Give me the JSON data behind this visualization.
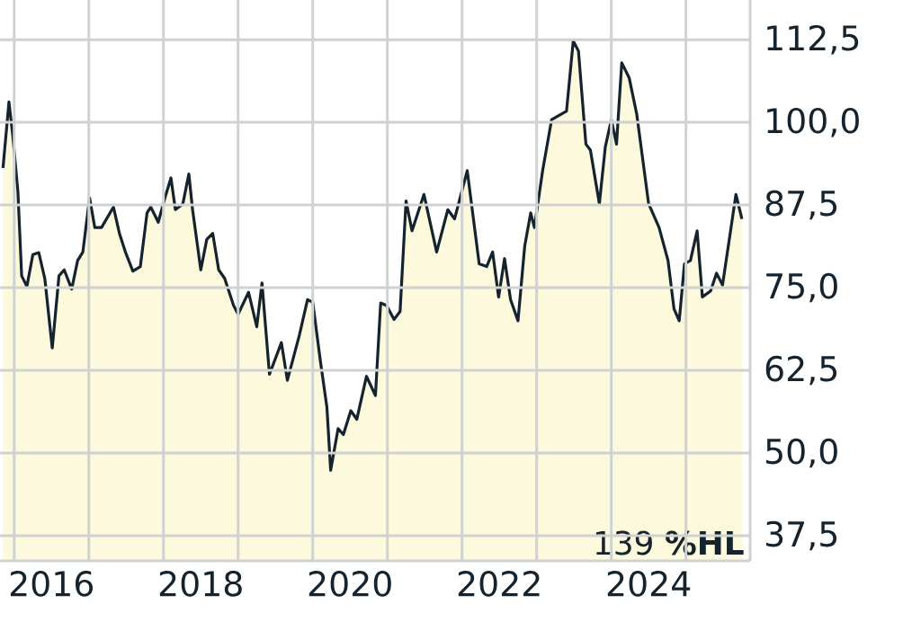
{
  "chart_data": {
    "type": "area",
    "xlim": [
      2015.81,
      2025.86
    ],
    "ylim": [
      33.7,
      118.5
    ],
    "xticks": [
      {
        "value": 2016,
        "label": null
      },
      {
        "value": 2016.5,
        "label": "2016"
      },
      {
        "value": 2017,
        "label": null
      },
      {
        "value": 2018,
        "label": null
      },
      {
        "value": 2018.5,
        "label": "2018"
      },
      {
        "value": 2019,
        "label": null
      },
      {
        "value": 2020,
        "label": null
      },
      {
        "value": 2020.5,
        "label": "2020"
      },
      {
        "value": 2021,
        "label": null
      },
      {
        "value": 2022,
        "label": null
      },
      {
        "value": 2022.5,
        "label": "2022"
      },
      {
        "value": 2023,
        "label": null
      },
      {
        "value": 2024,
        "label": null
      },
      {
        "value": 2024.5,
        "label": "2024"
      },
      {
        "value": 2025,
        "label": null
      }
    ],
    "yticks": [
      {
        "value": 37.5,
        "label": "37,5"
      },
      {
        "value": 50,
        "label": "50,0"
      },
      {
        "value": 62.5,
        "label": "62,5"
      },
      {
        "value": 75,
        "label": "75,0"
      },
      {
        "value": 87.5,
        "label": "87,5"
      },
      {
        "value": 100,
        "label": "100,0"
      },
      {
        "value": 112.5,
        "label": "112,5"
      }
    ],
    "grid": true,
    "annotations": [
      "139 **%HL**"
    ],
    "series": [
      {
        "color": "#14232e",
        "x": [
          2015.85,
          2015.93,
          2015.98,
          2016.05,
          2016.1,
          2016.17,
          2016.25,
          2016.33,
          2016.41,
          2016.51,
          2016.6,
          2016.67,
          2016.77,
          2016.85,
          2016.92,
          2017.01,
          2017.08,
          2017.17,
          2017.33,
          2017.41,
          2017.49,
          2017.59,
          2017.69,
          2017.78,
          2017.83,
          2017.93,
          2018.02,
          2018.1,
          2018.16,
          2018.26,
          2018.34,
          2018.39,
          2018.5,
          2018.58,
          2018.66,
          2018.74,
          2018.82,
          2018.94,
          2019.0,
          2019.14,
          2019.25,
          2019.32,
          2019.42,
          2019.58,
          2019.66,
          2019.82,
          2019.93,
          2020.0,
          2020.1,
          2020.19,
          2020.24,
          2020.34,
          2020.41,
          2020.51,
          2020.59,
          2020.72,
          2020.84,
          2020.91,
          2020.99,
          2021.09,
          2021.17,
          2021.25,
          2021.33,
          2021.49,
          2021.66,
          2021.81,
          2021.9,
          2022.07,
          2022.23,
          2022.33,
          2022.41,
          2022.49,
          2022.57,
          2022.65,
          2022.75,
          2022.84,
          2022.92,
          2022.97,
          2023.08,
          2023.2,
          2023.4,
          2023.49,
          2023.56,
          2023.66,
          2023.72,
          2023.84,
          2023.92,
          2024.0,
          2024.07,
          2024.14,
          2024.24,
          2024.34,
          2024.5,
          2024.64,
          2024.76,
          2024.84,
          2024.91,
          2024.98,
          2025.06,
          2025.15,
          2025.22,
          2025.33,
          2025.41,
          2025.49,
          2025.67,
          2025.75
        ],
        "values": [
          93.1,
          103.1,
          98.1,
          89.5,
          76.8,
          75.2,
          80.0,
          80.3,
          76.4,
          65.9,
          76.8,
          77.7,
          74.8,
          79.1,
          80.4,
          88.6,
          84.1,
          84.1,
          87.2,
          83.2,
          80.4,
          77.5,
          78.2,
          86.3,
          87.2,
          84.9,
          88.6,
          91.6,
          86.8,
          87.7,
          92.2,
          86.8,
          77.7,
          82.3,
          83.2,
          77.7,
          76.4,
          72.3,
          71.0,
          74.3,
          69.1,
          75.7,
          61.9,
          66.7,
          61.0,
          67.8,
          73.2,
          72.8,
          64.1,
          56.9,
          47.4,
          53.7,
          52.8,
          56.4,
          55.1,
          61.6,
          58.7,
          72.7,
          72.3,
          70.2,
          71.4,
          88.1,
          83.6,
          89.1,
          80.4,
          86.8,
          85.4,
          92.7,
          78.6,
          78.2,
          80.4,
          73.6,
          79.4,
          73.2,
          70.0,
          81.3,
          86.3,
          84.1,
          92.7,
          100.4,
          101.7,
          112.3,
          110.8,
          96.7,
          95.8,
          87.7,
          96.3,
          100.4,
          96.7,
          109.0,
          106.7,
          101.3,
          87.7,
          84.1,
          79.1,
          71.8,
          70.0,
          78.6,
          79.1,
          83.6,
          73.6,
          74.5,
          77.2,
          75.4,
          89.1,
          85.4
        ]
      }
    ]
  }
}
